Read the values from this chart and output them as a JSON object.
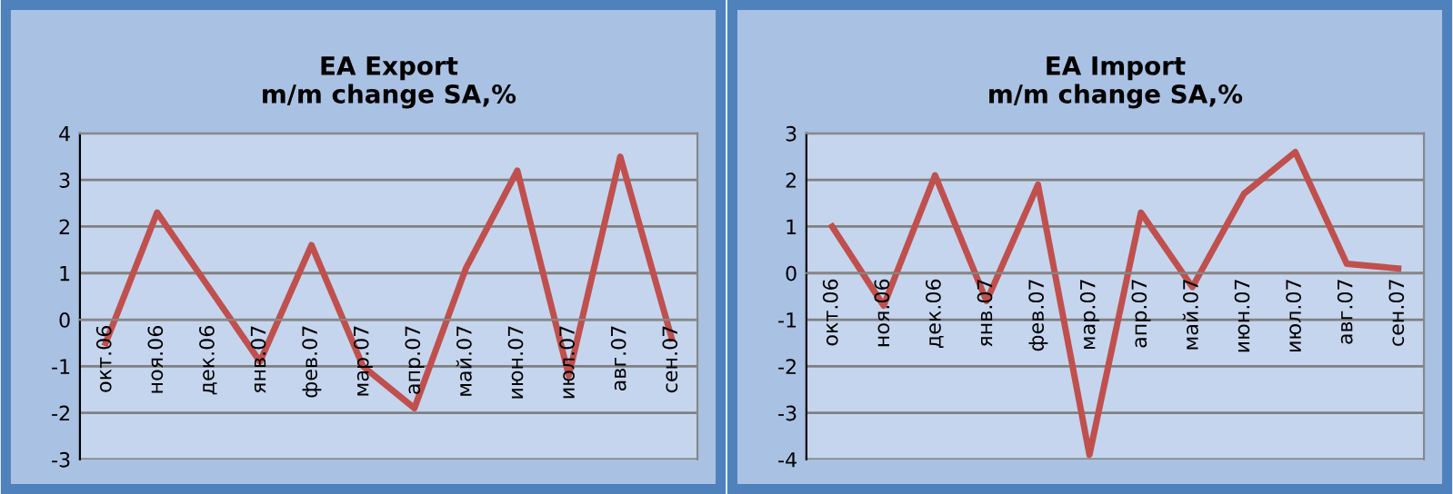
{
  "chart_data": [
    {
      "type": "line",
      "title": "EA Export\nm/m change SA,%",
      "categories": [
        "окт.06",
        "ноя.06",
        "дек.06",
        "янв.07",
        "фев.07",
        "мар.07",
        "апр.07",
        "май.07",
        "июн.07",
        "июл.07",
        "авг.07",
        "сен.07"
      ],
      "series": [
        {
          "color": "#c0504d",
          "values": [
            -0.5,
            2.3,
            0.7,
            -0.9,
            1.6,
            -1.0,
            -1.9,
            1.1,
            3.2,
            -1.2,
            3.5,
            -0.4
          ]
        }
      ],
      "ylim": [
        -3,
        4
      ],
      "yticks": [
        -3,
        -2,
        -1,
        0,
        1,
        2,
        3,
        4
      ],
      "grid": "y",
      "legend": false,
      "marker": "none",
      "line_style": "solid"
    },
    {
      "type": "line",
      "title": "EA Import\nm/m change SA,%",
      "categories": [
        "окт.06",
        "ноя.06",
        "дек.06",
        "янв.07",
        "фев.07",
        "мар.07",
        "апр.07",
        "май.07",
        "июн.07",
        "июл.07",
        "авг.07",
        "сен.07"
      ],
      "series": [
        {
          "color": "#c0504d",
          "values": [
            1.0,
            -0.7,
            2.1,
            -0.6,
            1.9,
            -3.9,
            1.3,
            -0.3,
            1.7,
            2.6,
            0.2,
            0.1
          ]
        }
      ],
      "ylim": [
        -4,
        3
      ],
      "yticks": [
        -4,
        -3,
        -2,
        -1,
        0,
        1,
        2,
        3
      ],
      "grid": "y",
      "legend": false,
      "marker": "none",
      "line_style": "solid"
    }
  ]
}
